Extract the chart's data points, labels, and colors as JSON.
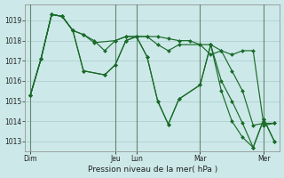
{
  "background_color": "#cce8e8",
  "grid_color": "#aacccc",
  "line_color": "#1a6b2a",
  "vline_color": "#446644",
  "xlabel": "Pression niveau de la mer( hPa )",
  "ylim": [
    1012.5,
    1019.8
  ],
  "yticks": [
    1013,
    1014,
    1015,
    1016,
    1017,
    1018,
    1019
  ],
  "x_day_labels": [
    "Dim",
    "Jeu",
    "Lun",
    "Mar",
    "Mer"
  ],
  "x_day_positions": [
    0,
    16,
    20,
    32,
    44
  ],
  "xlim": [
    -1,
    47
  ],
  "series": [
    {
      "x": [
        0,
        2,
        4,
        6,
        8,
        10,
        12,
        14,
        16,
        18,
        20,
        22,
        24,
        26,
        28,
        30,
        32,
        34,
        36,
        38,
        40,
        42,
        44,
        46
      ],
      "y": [
        1015.3,
        1017.1,
        1019.3,
        1019.2,
        1018.5,
        1018.3,
        1018.0,
        1017.5,
        1018.0,
        1018.2,
        1018.2,
        1018.2,
        1018.2,
        1018.1,
        1018.0,
        1018.0,
        1017.8,
        1017.8,
        1017.5,
        1017.3,
        1017.5,
        1017.5,
        1013.8,
        1013.9
      ]
    },
    {
      "x": [
        0,
        2,
        4,
        6,
        8,
        10,
        12,
        16,
        18,
        20,
        22,
        24,
        26,
        28,
        32,
        34,
        36,
        38,
        40,
        42,
        44,
        46
      ],
      "y": [
        1015.3,
        1017.1,
        1019.3,
        1019.2,
        1018.5,
        1018.3,
        1017.9,
        1018.0,
        1018.2,
        1018.2,
        1018.2,
        1017.8,
        1017.5,
        1017.8,
        1017.8,
        1017.3,
        1017.5,
        1016.5,
        1015.5,
        1013.8,
        1013.9,
        1013.9
      ]
    },
    {
      "x": [
        0,
        2,
        4,
        6,
        8,
        10,
        14,
        16,
        18,
        20,
        22,
        24,
        26,
        28,
        32,
        34,
        36,
        38,
        40,
        42,
        44,
        46
      ],
      "y": [
        1015.3,
        1017.1,
        1019.3,
        1019.2,
        1018.5,
        1016.5,
        1016.3,
        1016.8,
        1018.0,
        1018.2,
        1017.2,
        1015.0,
        1013.85,
        1015.1,
        1015.8,
        1017.8,
        1016.0,
        1015.0,
        1013.9,
        1012.7,
        1014.1,
        1013.0
      ]
    },
    {
      "x": [
        0,
        2,
        4,
        6,
        8,
        10,
        14,
        16,
        18,
        20,
        22,
        24,
        26,
        28,
        32,
        34,
        36,
        38,
        40,
        42,
        44,
        46
      ],
      "y": [
        1015.3,
        1017.1,
        1019.3,
        1019.2,
        1018.5,
        1016.5,
        1016.3,
        1016.8,
        1018.0,
        1018.2,
        1017.2,
        1015.0,
        1013.85,
        1015.1,
        1015.8,
        1017.8,
        1015.5,
        1014.0,
        1013.2,
        1012.7,
        1014.1,
        1013.0
      ]
    }
  ]
}
